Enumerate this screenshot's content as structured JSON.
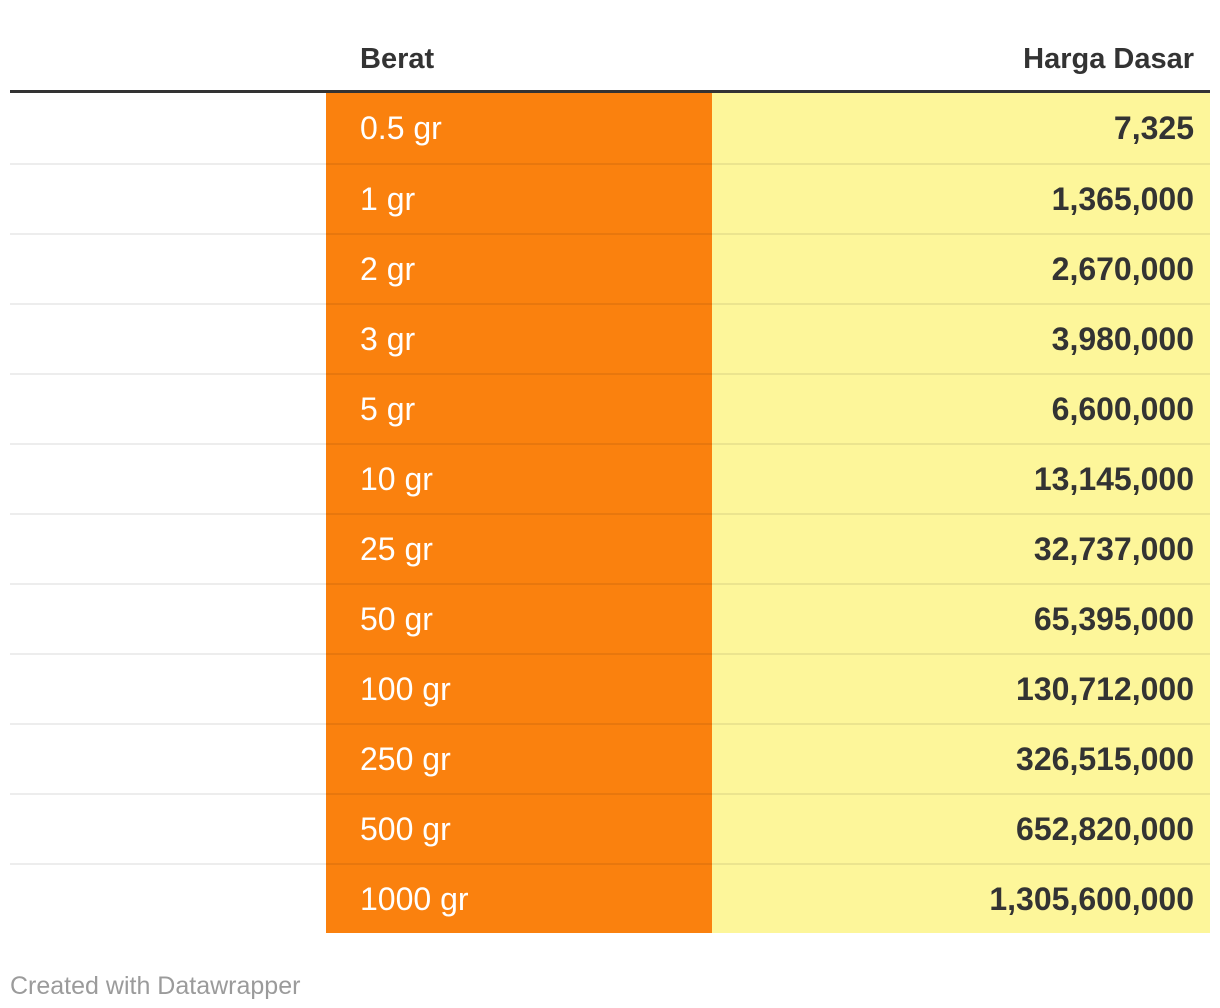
{
  "table": {
    "columns": [
      {
        "label": ""
      },
      {
        "label": "Berat"
      },
      {
        "label": "Harga Dasar"
      }
    ],
    "rows": [
      {
        "berat": "0.5 gr",
        "harga": "7,325"
      },
      {
        "berat": "1 gr",
        "harga": "1,365,000"
      },
      {
        "berat": "2 gr",
        "harga": "2,670,000"
      },
      {
        "berat": "3 gr",
        "harga": "3,980,000"
      },
      {
        "berat": "5 gr",
        "harga": "6,600,000"
      },
      {
        "berat": "10 gr",
        "harga": "13,145,000"
      },
      {
        "berat": "25 gr",
        "harga": "32,737,000"
      },
      {
        "berat": "50 gr",
        "harga": "65,395,000"
      },
      {
        "berat": "100 gr",
        "harga": "130,712,000"
      },
      {
        "berat": "250 gr",
        "harga": "326,515,000"
      },
      {
        "berat": "500 gr",
        "harga": "652,820,000"
      },
      {
        "berat": "1000 gr",
        "harga": "1,305,600,000"
      }
    ]
  },
  "chart_data": {
    "type": "table",
    "title": "",
    "columns": [
      "Berat",
      "Harga Dasar"
    ],
    "categories": [
      "0.5 gr",
      "1 gr",
      "2 gr",
      "3 gr",
      "5 gr",
      "10 gr",
      "25 gr",
      "50 gr",
      "100 gr",
      "250 gr",
      "500 gr",
      "1000 gr"
    ],
    "values": [
      7325,
      1365000,
      2670000,
      3980000,
      6600000,
      13145000,
      32737000,
      65395000,
      130712000,
      326515000,
      652820000,
      1305600000
    ]
  },
  "footer": {
    "credit": "Created with Datawrapper"
  },
  "colors": {
    "berat_column_bg": "#FA810E",
    "harga_column_bg": "#FDF69A",
    "header_text": "#333333",
    "value_text": "#333333",
    "berat_text": "#ffffff",
    "header_rule": "#333333",
    "row_separator": "rgba(0,0,0,0.07)",
    "credit_text": "#9b9b9b"
  }
}
